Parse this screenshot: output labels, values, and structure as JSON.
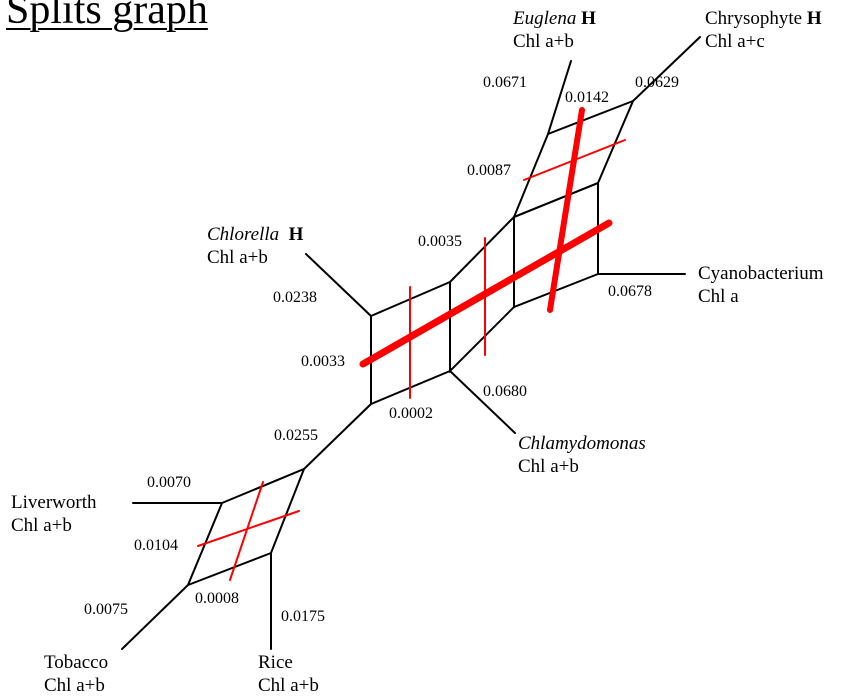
{
  "title": "Splits graph",
  "taxa": {
    "euglena": {
      "name": "Euglena",
      "mark": "H",
      "pigment": "Chl a+b"
    },
    "chrysophyte": {
      "name": "Chrysophyte",
      "mark": "H",
      "pigment": "Chl a+c"
    },
    "chlorella": {
      "name": "Chlorella",
      "mark": "H",
      "pigment": "Chl a+b"
    },
    "cyanobacterium": {
      "name": "Cyanobacterium",
      "pigment": "Chl a"
    },
    "chlamydomonas": {
      "name": "Chlamydomonas",
      "pigment": "Chl a+b"
    },
    "liverworth": {
      "name": "Liverworth",
      "pigment": "Chl a+b"
    },
    "tobacco": {
      "name": "Tobacco",
      "pigment": "Chl a+b"
    },
    "rice": {
      "name": "Rice",
      "pigment": "Chl a+b"
    }
  },
  "weights": {
    "euglena": "0.0671",
    "euglena_chrysophyte": "0.0142",
    "chrysophyte": "0.0629",
    "upper_split": "0.0087",
    "middle_split": "0.0035",
    "chlorella": "0.0238",
    "cyanobacterium": "0.0678",
    "main_split": "0.0033",
    "chlamydomonas": "0.0680",
    "small_split": "0.0002",
    "internal": "0.0255",
    "liverworth": "0.0070",
    "lower_split": "0.0104",
    "tiny_split": "0.0008",
    "tobacco": "0.0075",
    "rice": "0.0175"
  },
  "colors": {
    "edges": "#000000",
    "highlight": "#ff0000"
  }
}
